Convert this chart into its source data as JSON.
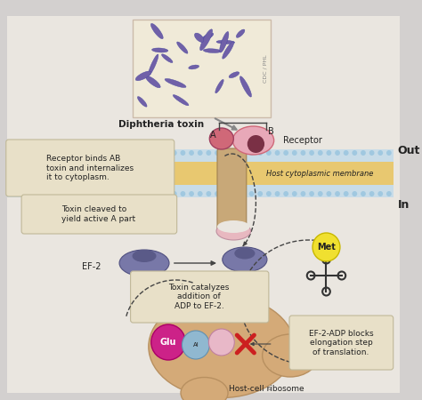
{
  "fig_bg": "#d3d0cf",
  "white_area_bg": "#e8e4df",
  "labels": {
    "diphtheria_toxin": "Diphtheria toxin",
    "receptor": "Receptor",
    "A_label": "A",
    "B_label": "B",
    "receptor_binds": "Receptor binds AB\ntoxin and internalizes\nit to cytoplasm.",
    "toxin_cleaved": "Toxin cleaved to\nyield active A part",
    "ef2": "EF-2",
    "adp": "ADP",
    "catalyzes": "Toxin catalyzes\naddition of\nADP to EF-2.",
    "ef2_adp_blocks": "EF-2-ADP blocks\nelongation step\nof translation.",
    "host_cell_ribosome": "Host-cell ribosome",
    "glu": "Glu",
    "met": "Met",
    "host_cytoplasmic_membrane": "Host cytoplasmic membrane",
    "cdc_phl": "CDC / PHL",
    "out_label": "Out",
    "in_label": "In"
  },
  "colors": {
    "membrane_blue": "#c8dce8",
    "membrane_yellow": "#e8c870",
    "receptor_pink_light": "#e8a8b8",
    "receptor_pink_dark": "#d06878",
    "receptor_dark_spot": "#7a3045",
    "toxin_stem_tan": "#c8a878",
    "ribosome_tan": "#d4aa78",
    "ribosome_edge": "#b89060",
    "ef2_purple": "#7878a8",
    "ef2_edge": "#505080",
    "active_a_pink": "#e8b8c0",
    "glu_magenta": "#cc2288",
    "met_yellow": "#f0e030",
    "met_edge": "#c8b800",
    "cross_red": "#cc2020",
    "tRNA_outline": "#333333",
    "box_fill": "#e8e0c8",
    "box_border": "#c0b898",
    "arrow_gray": "#888888",
    "text_dark": "#222222",
    "bacteria_bg": "#f0ead8",
    "bacteria_color": "#7060a8",
    "blue_circle": "#90b8d0",
    "pink_circle": "#e8b8c8",
    "dot_blue": "#a0c8e0"
  }
}
